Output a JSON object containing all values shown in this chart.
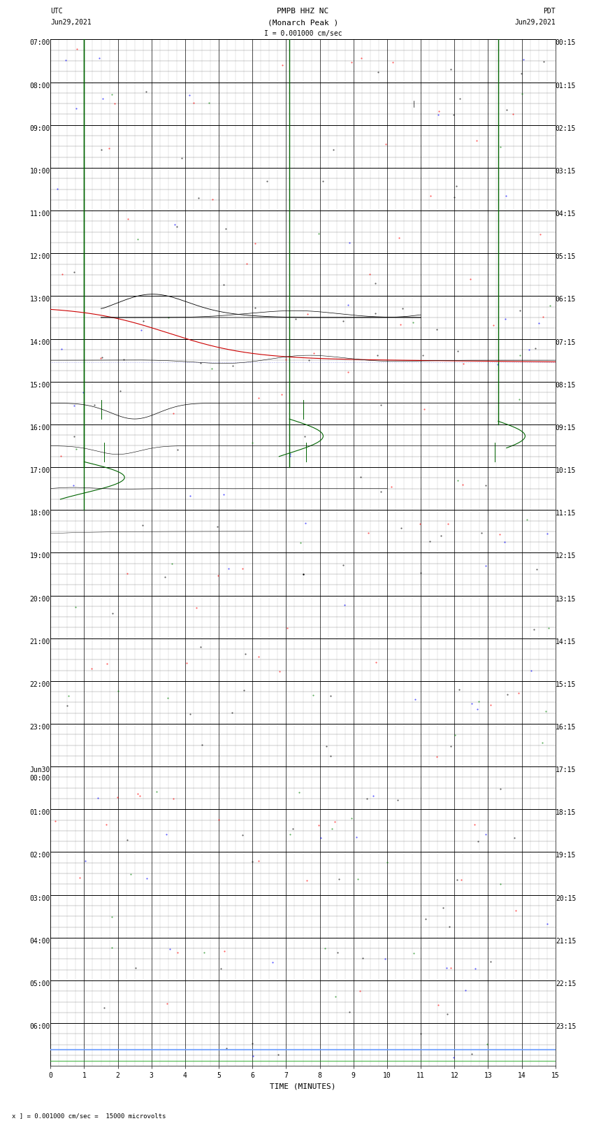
{
  "title_line1": "PMPB HHZ NC",
  "title_line2": "(Monarch Peak )",
  "scale_text": "I = 0.001000 cm/sec",
  "left_label_top": "UTC",
  "left_label_date": "Jun29,2021",
  "right_label_top": "PDT",
  "right_label_date": "Jun29,2021",
  "xlabel": "TIME (MINUTES)",
  "footer_text": "x ] = 0.001000 cm/sec =  15000 microvolts",
  "utc_labels": [
    "07:00",
    "08:00",
    "09:00",
    "10:00",
    "11:00",
    "12:00",
    "13:00",
    "14:00",
    "15:00",
    "16:00",
    "17:00",
    "18:00",
    "19:00",
    "20:00",
    "21:00",
    "22:00",
    "23:00",
    "Jun30\n00:00",
    "01:00",
    "02:00",
    "03:00",
    "04:00",
    "05:00",
    "06:00"
  ],
  "pdt_labels": [
    "00:15",
    "01:15",
    "02:15",
    "03:15",
    "04:15",
    "05:15",
    "06:15",
    "07:15",
    "08:15",
    "09:15",
    "10:15",
    "11:15",
    "12:15",
    "13:15",
    "14:15",
    "15:15",
    "16:15",
    "17:15",
    "18:15",
    "19:15",
    "20:15",
    "21:15",
    "22:15",
    "23:15"
  ],
  "n_rows": 24,
  "n_subrows": 4,
  "x_min": 0,
  "x_max": 15,
  "bg_color": "#ffffff",
  "major_grid_color": "#000000",
  "minor_grid_color": "#888888",
  "green_spike_color": "#006400",
  "red_line_color": "#cc0000",
  "blue_line_color": "#0000cc",
  "fig_width": 8.5,
  "fig_height": 16.13,
  "title_fontsize": 8,
  "label_fontsize": 7,
  "tick_fontsize": 7,
  "dpi": 100
}
